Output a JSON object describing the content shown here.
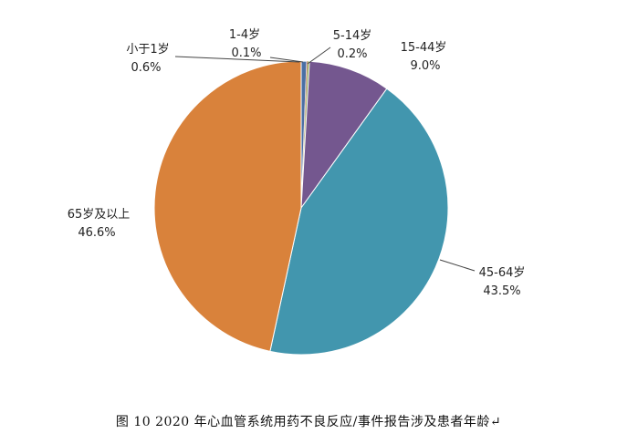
{
  "caption": "图 10  2020 年心血管系统用药不良反应/事件报告涉及患者年龄↵",
  "chart_data": {
    "type": "pie",
    "title": "",
    "start_angle_deg": 0,
    "direction": "clockwise",
    "slices": [
      {
        "name": "小于1岁",
        "value": 0.6,
        "label": "0.6%",
        "color": "#4a6fa5"
      },
      {
        "name": "1-4岁",
        "value": 0.1,
        "label": "0.1%",
        "color": "#b84a3a"
      },
      {
        "name": "5-14岁",
        "value": 0.2,
        "label": "0.2%",
        "color": "#8ba84a"
      },
      {
        "name": "15-44岁",
        "value": 9.0,
        "label": "9.0%",
        "color": "#74578f"
      },
      {
        "name": "45-64岁",
        "value": 43.5,
        "label": "43.5%",
        "color": "#4296ae"
      },
      {
        "name": "65岁及以上",
        "value": 46.6,
        "label": "46.6%",
        "color": "#d9823b"
      }
    ]
  }
}
